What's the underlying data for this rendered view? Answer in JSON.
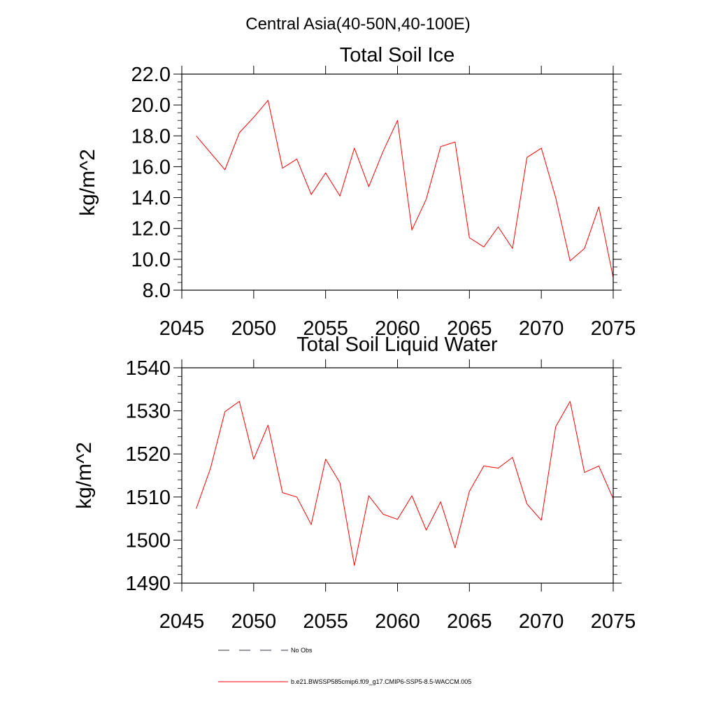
{
  "figure": {
    "title": "Central Asia(40-50N,40-100E)"
  },
  "chart_data": [
    {
      "type": "line",
      "title": "Total Soil Ice",
      "xlabel": "",
      "ylabel": "kg/m^2",
      "xlim": [
        2045,
        2075
      ],
      "ylim": [
        8.0,
        22.0
      ],
      "x_ticks": [
        "2045",
        "2050",
        "2055",
        "2060",
        "2065",
        "2070",
        "2075"
      ],
      "y_ticks": [
        "8.0",
        "10.0",
        "12.0",
        "14.0",
        "16.0",
        "18.0",
        "20.0",
        "22.0"
      ],
      "series": [
        {
          "color": "#ff0000",
          "x": [
            2046,
            2047,
            2048,
            2049,
            2050,
            2051,
            2052,
            2053,
            2054,
            2055,
            2056,
            2057,
            2058,
            2059,
            2060,
            2061,
            2062,
            2063,
            2064,
            2065,
            2066,
            2067,
            2068,
            2069,
            2070,
            2071,
            2072,
            2073,
            2074,
            2075
          ],
          "values": [
            18.0,
            16.9,
            15.8,
            18.2,
            19.2,
            20.3,
            15.9,
            16.5,
            14.2,
            15.6,
            14.1,
            17.2,
            14.7,
            17.0,
            19.0,
            11.9,
            13.9,
            17.3,
            17.6,
            11.4,
            10.8,
            12.1,
            10.7,
            16.6,
            17.2,
            14.0,
            9.9,
            10.7,
            13.4,
            8.8
          ]
        }
      ]
    },
    {
      "type": "line",
      "title": "Total Soil Liquid Water",
      "xlabel": "",
      "ylabel": "kg/m^2",
      "xlim": [
        2045,
        2075
      ],
      "ylim": [
        1490,
        1540
      ],
      "x_ticks": [
        "2045",
        "2050",
        "2055",
        "2060",
        "2065",
        "2070",
        "2075"
      ],
      "y_ticks": [
        "1490",
        "1500",
        "1510",
        "1520",
        "1530",
        "1540"
      ],
      "series": [
        {
          "color": "#ff0000",
          "x": [
            2046,
            2047,
            2048,
            2049,
            2050,
            2051,
            2052,
            2053,
            2054,
            2055,
            2056,
            2057,
            2058,
            2059,
            2060,
            2061,
            2062,
            2063,
            2064,
            2065,
            2066,
            2067,
            2068,
            2069,
            2070,
            2071,
            2072,
            2073,
            2074,
            2075
          ],
          "values": [
            1507.3,
            1516.7,
            1529.8,
            1532.2,
            1518.8,
            1526.7,
            1511.0,
            1510.0,
            1503.6,
            1518.8,
            1513.3,
            1494.1,
            1510.3,
            1506.0,
            1504.8,
            1510.3,
            1502.3,
            1508.9,
            1498.2,
            1511.3,
            1517.2,
            1516.7,
            1519.2,
            1508.4,
            1504.6,
            1526.3,
            1532.2,
            1515.7,
            1517.2,
            1509.6
          ]
        }
      ]
    }
  ],
  "legend": [
    {
      "label": "No Obs",
      "style": "dashed",
      "color": "#34344f"
    },
    {
      "label": "b.e21.BWSSP585cmip6.f09_g17.CMIP6-SSP5-8.5-WACCM.005",
      "style": "solid",
      "color": "#ff0000"
    }
  ]
}
